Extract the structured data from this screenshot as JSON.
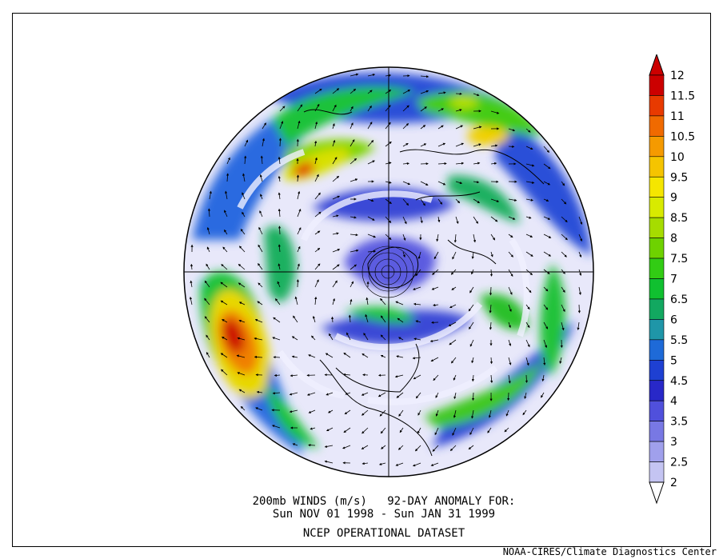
{
  "caption": {
    "line1": "200mb WINDS (m/s)   92-DAY ANOMALY FOR:",
    "line2": "Sun NOV 01 1998 - Sun JAN 31 1999",
    "line3": "NCEP OPERATIONAL DATASET"
  },
  "credit": "NOAA-CIRES/Climate Diagnostics Center",
  "map": {
    "projection": "north-polar-stereographic",
    "field": "wind speed anomaly with wind vectors"
  },
  "colorbar": {
    "levels": [
      "12",
      "11.5",
      "11",
      "10.5",
      "10",
      "9.5",
      "9",
      "8.5",
      "8",
      "7.5",
      "7",
      "6.5",
      "6",
      "5.5",
      "5",
      "4.5",
      "4",
      "3.5",
      "3",
      "2.5",
      "2"
    ],
    "colors": [
      "#cc0000",
      "#e83a00",
      "#f06a00",
      "#f59a00",
      "#f5c400",
      "#f5e600",
      "#d8ea00",
      "#a6dc00",
      "#6ed200",
      "#32cc14",
      "#10c030",
      "#12a860",
      "#1f96a8",
      "#1e6ad8",
      "#1e40d2",
      "#2828c8",
      "#5050dc",
      "#7878e4",
      "#a0a0ec",
      "#c4c4f2",
      "#e2e2f8"
    ]
  }
}
